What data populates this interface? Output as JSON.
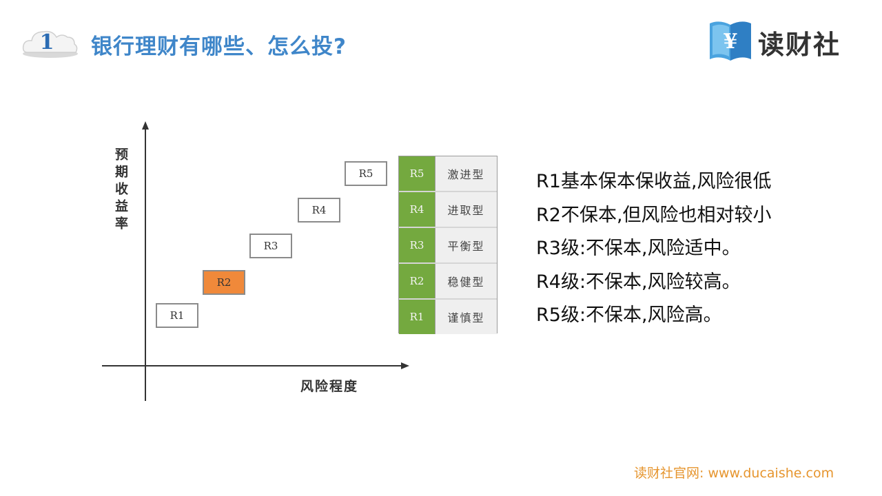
{
  "header": {
    "section_number": "1",
    "title": "银行理财有哪些、怎么投?",
    "brand_name": "读财社",
    "colors": {
      "title": "#3f86c9",
      "number": "#2a6bb3"
    }
  },
  "diagram": {
    "y_axis_label": "预期收益率",
    "x_axis_label": "风险程度",
    "levels": [
      {
        "label": "R1",
        "highlighted": false
      },
      {
        "label": "R2",
        "highlighted": true
      },
      {
        "label": "R3",
        "highlighted": false
      },
      {
        "label": "R4",
        "highlighted": false
      },
      {
        "label": "R5",
        "highlighted": false
      }
    ],
    "legend": [
      {
        "level": "R5",
        "type": "激进型"
      },
      {
        "level": "R4",
        "type": "进取型"
      },
      {
        "level": "R3",
        "type": "平衡型"
      },
      {
        "level": "R2",
        "type": "稳健型"
      },
      {
        "level": "R1",
        "type": "谨慎型"
      }
    ],
    "colors": {
      "highlight": "#f0893a",
      "legend_level": "#74a93f"
    }
  },
  "descriptions": [
    "R1基本保本保收益,风险很低",
    "R2不保本,但风险也相对较小",
    "R3级:不保本,风险适中。",
    "R4级:不保本,风险较高。",
    "R5级:不保本,风险高。"
  ],
  "footer": {
    "text": "读财社官网: www.ducaishe.com",
    "color": "#e6952e"
  }
}
